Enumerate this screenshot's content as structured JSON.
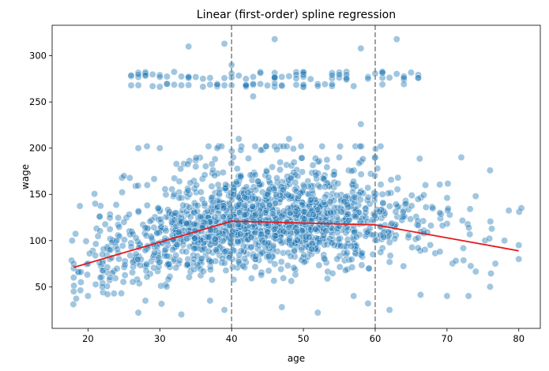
{
  "chart_data": {
    "type": "scatter",
    "title": "Linear (first-order) spline regression",
    "xlabel": "age",
    "ylabel": "wage",
    "xlim": [
      15,
      83
    ],
    "ylim": [
      5,
      333
    ],
    "xticks": [
      20,
      30,
      40,
      50,
      60,
      70,
      80
    ],
    "yticks": [
      50,
      100,
      150,
      200,
      250,
      300
    ],
    "grid": false,
    "legend": "none",
    "scatter_color": "#1f77b4",
    "line_color": "#e41a1c",
    "knot_color": "#808080",
    "knots": [
      40,
      60
    ],
    "fit_line": {
      "x": [
        18,
        40,
        60,
        80
      ],
      "y": [
        71,
        121,
        117,
        89
      ]
    },
    "points_sample": [
      [
        18,
        70
      ],
      [
        18,
        60
      ],
      [
        18,
        75
      ],
      [
        18,
        45
      ],
      [
        19,
        55
      ],
      [
        19,
        66
      ],
      [
        20,
        75
      ],
      [
        20,
        40
      ],
      [
        21,
        140
      ],
      [
        22,
        85
      ],
      [
        22,
        50
      ],
      [
        24,
        100
      ],
      [
        25,
        170
      ],
      [
        25,
        120
      ],
      [
        26,
        268
      ],
      [
        27,
        200
      ],
      [
        27,
        22
      ],
      [
        28,
        35
      ],
      [
        30,
        200
      ],
      [
        32,
        150
      ],
      [
        33,
        20
      ],
      [
        34,
        310
      ],
      [
        35,
        180
      ],
      [
        37,
        35
      ],
      [
        38,
        200
      ],
      [
        39,
        313
      ],
      [
        39,
        25
      ],
      [
        40,
        290
      ],
      [
        41,
        210
      ],
      [
        42,
        120
      ],
      [
        43,
        256
      ],
      [
        45,
        150
      ],
      [
        46,
        318
      ],
      [
        47,
        28
      ],
      [
        48,
        210
      ],
      [
        50,
        160
      ],
      [
        52,
        22
      ],
      [
        55,
        190
      ],
      [
        57,
        40
      ],
      [
        58,
        226
      ],
      [
        58,
        308
      ],
      [
        59,
        32
      ],
      [
        60,
        190
      ],
      [
        61,
        150
      ],
      [
        62,
        25
      ],
      [
        63,
        318
      ],
      [
        66,
        276
      ],
      [
        67,
        160
      ],
      [
        69,
        130
      ],
      [
        70,
        40
      ],
      [
        72,
        190
      ],
      [
        73,
        40
      ],
      [
        74,
        148
      ],
      [
        76,
        176
      ],
      [
        76,
        50
      ],
      [
        78,
        100
      ],
      [
        80,
        95
      ],
      [
        80,
        80
      ]
    ]
  }
}
